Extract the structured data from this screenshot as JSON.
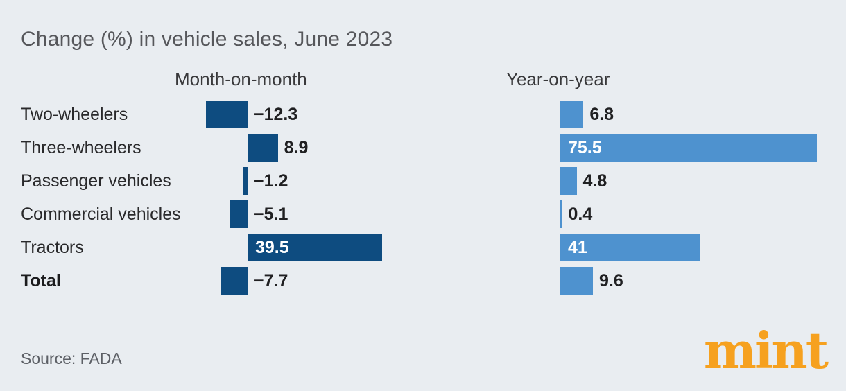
{
  "title": "Change (%) in vehicle sales, June 2023",
  "source": "Source: FADA",
  "brand": {
    "logo_text": "mint",
    "logo_color": "#F6A11F"
  },
  "colors": {
    "background": "#E9EDF1",
    "mom_bar": "#0E4C80",
    "yoy_bar": "#4E92CF",
    "outside_value_text": "#202022",
    "inside_value_text": "#FFFFFF",
    "title_text": "#56575B"
  },
  "chart_data": {
    "type": "bar",
    "orientation": "horizontal",
    "title": "Change (%) in vehicle sales, June 2023",
    "categories": [
      "Two-wheelers",
      "Three-wheelers",
      "Passenger vehicles",
      "Commercial vehicles",
      "Tractors",
      "Total"
    ],
    "series": [
      {
        "name": "Month-on-month",
        "values": [
          -12.3,
          8.9,
          -1.2,
          -5.1,
          39.5,
          -7.7
        ]
      },
      {
        "name": "Year-on-year",
        "values": [
          6.8,
          75.5,
          4.8,
          0.4,
          41,
          9.6
        ]
      }
    ],
    "grid": false,
    "axes_shown": false,
    "legend": "column-headers",
    "value_labels": true,
    "bold_last_category": true
  }
}
